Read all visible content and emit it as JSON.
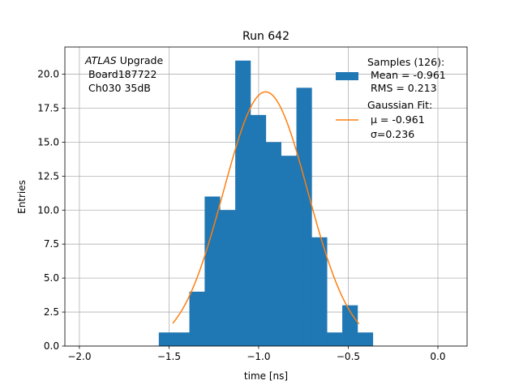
{
  "chart_data": {
    "type": "bar",
    "title": "Run 642",
    "xlabel": "time [ns]",
    "ylabel": "Entries",
    "xlim": [
      -2.081,
      0.163
    ],
    "ylim": [
      0,
      22
    ],
    "grid": true,
    "xticks": [
      -2.0,
      -1.5,
      -1.0,
      -0.5,
      0.0
    ],
    "xtick_labels": [
      "−2.0",
      "−1.5",
      "−1.0",
      "−0.5",
      "0.0"
    ],
    "yticks": [
      0,
      2.5,
      5,
      7.5,
      10,
      12.5,
      15,
      17.5,
      20
    ],
    "ytick_labels": [
      "0.0",
      "2.5",
      "5.0",
      "7.5",
      "10.0",
      "12.5",
      "15.0",
      "17.5",
      "20.0"
    ],
    "histogram": {
      "bin_start": -1.557,
      "bin_width": 0.0853,
      "counts": [
        1,
        1,
        4,
        11,
        10,
        21,
        17,
        15,
        14,
        19,
        8,
        1,
        3,
        1
      ],
      "color": "#1f77b4"
    },
    "gaussian_fit": {
      "mu": -0.961,
      "sigma": 0.236,
      "amplitude": 18.7,
      "x_range": [
        -1.48,
        -0.44
      ],
      "color": "#ff7f0e"
    },
    "annotation": {
      "italic": "ATLAS",
      "rest": " Upgrade",
      "line2": " Board187722",
      "line3": " Ch030 35dB"
    },
    "legend": {
      "placement": "top-right",
      "samples": [
        "Samples (126):",
        " Mean = -0.961",
        " RMS = 0.213"
      ],
      "fit": [
        "Gaussian Fit:",
        " μ = -0.961",
        " σ=0.236"
      ]
    }
  }
}
